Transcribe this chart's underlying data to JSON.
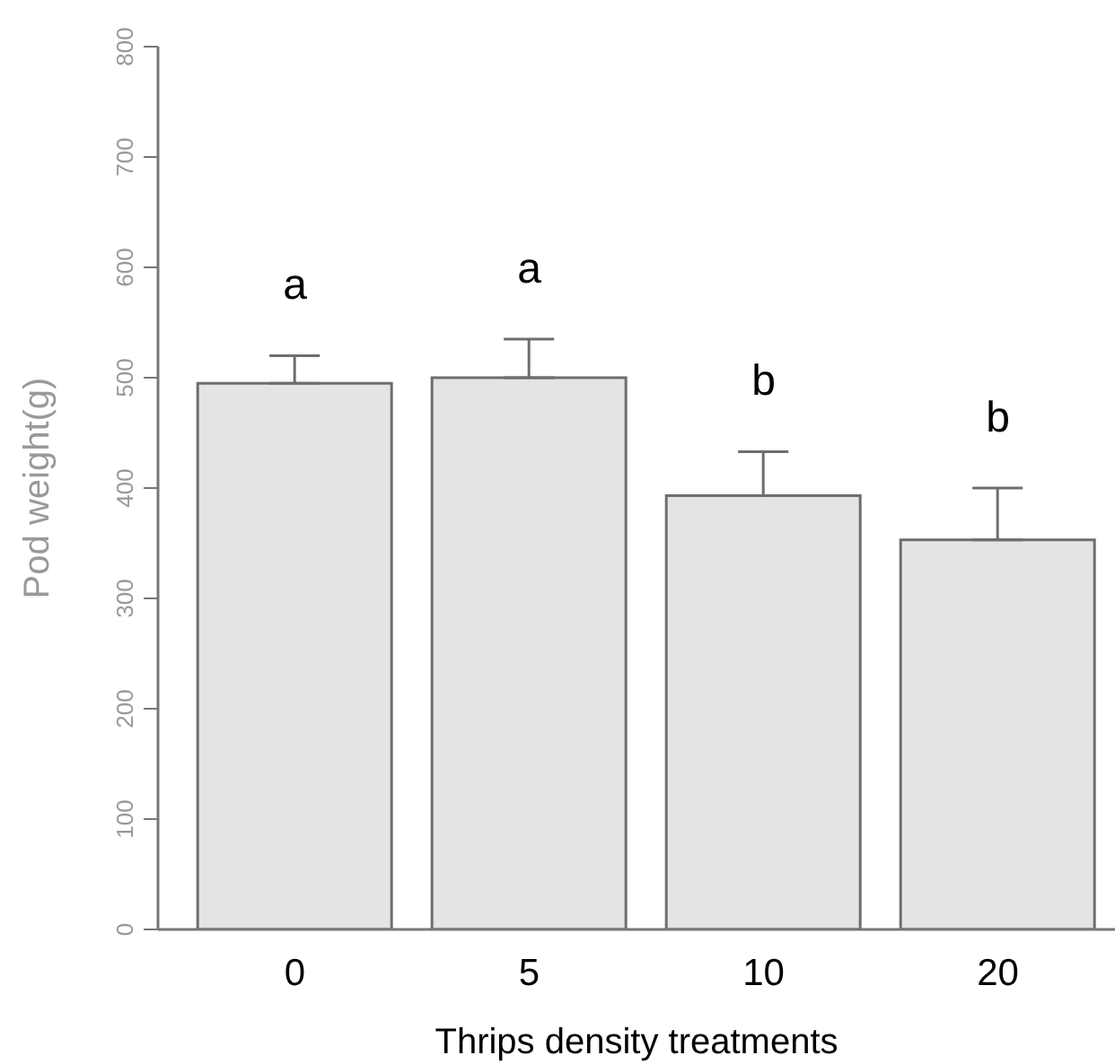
{
  "chart_data": {
    "type": "bar",
    "xlabel": "Thrips density treatments",
    "ylabel": "Pod weight(g)",
    "categories": [
      "0",
      "5",
      "10",
      "20"
    ],
    "values": [
      495,
      500,
      393,
      353
    ],
    "errors": [
      [
        495,
        520
      ],
      [
        500,
        535
      ],
      [
        393,
        433
      ],
      [
        353,
        400
      ]
    ],
    "color": "#e4e4e4",
    "ylim": [
      0,
      800
    ],
    "yticks": [
      0,
      100,
      200,
      300,
      400,
      500,
      600,
      700,
      800
    ],
    "grid": false,
    "legend": false,
    "annotations": [
      "a",
      "a",
      "b",
      "b"
    ]
  }
}
